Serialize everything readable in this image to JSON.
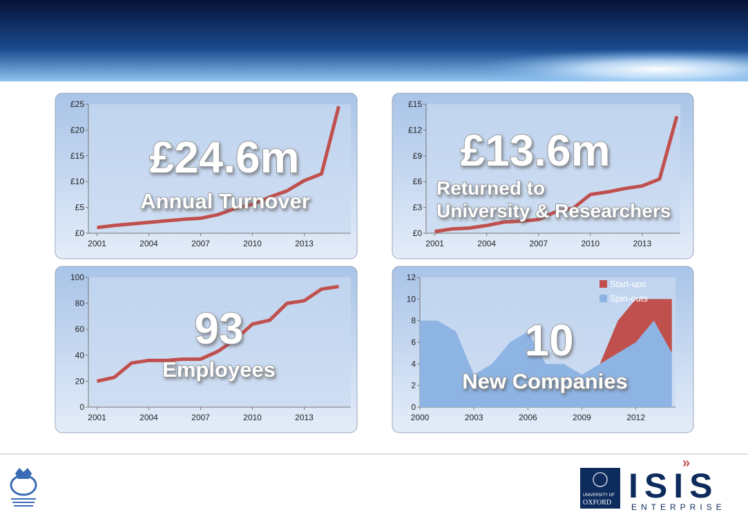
{
  "chart_data": [
    {
      "type": "line",
      "annotation": [
        "£24.6m",
        "Annual Turnover"
      ],
      "x": [
        2001,
        2002,
        2003,
        2004,
        2005,
        2006,
        2007,
        2008,
        2009,
        2010,
        2011,
        2012,
        2013,
        2014,
        2015
      ],
      "values": [
        1.1,
        1.5,
        1.8,
        2.1,
        2.4,
        2.7,
        2.9,
        3.6,
        4.8,
        5.6,
        7.0,
        8.2,
        10.2,
        11.5,
        24.6
      ],
      "color": "#c0504d",
      "xlim": [
        2000.5,
        2015.7
      ],
      "xticks": [
        2001,
        2004,
        2007,
        2010,
        2013
      ],
      "ylim": [
        0,
        25
      ],
      "yticks": [
        {
          "value": 0,
          "label": "£0"
        },
        {
          "value": 5,
          "label": "£5"
        },
        {
          "value": 10,
          "label": "£10"
        },
        {
          "value": 15,
          "label": "£15"
        },
        {
          "value": 20,
          "label": "£20"
        },
        {
          "value": 25,
          "label": "£25"
        }
      ]
    },
    {
      "type": "line",
      "annotation": [
        "£13.6m",
        "Returned to",
        "University & Researchers"
      ],
      "x": [
        2001,
        2002,
        2003,
        2004,
        2005,
        2006,
        2007,
        2008,
        2009,
        2010,
        2011,
        2012,
        2013,
        2014,
        2015
      ],
      "values": [
        0.2,
        0.5,
        0.6,
        0.9,
        1.3,
        1.4,
        1.6,
        2.5,
        2.9,
        4.5,
        4.8,
        5.2,
        5.5,
        6.3,
        13.6
      ],
      "color": "#c0504d",
      "xlim": [
        2000.5,
        2015.2
      ],
      "xticks": [
        2001,
        2004,
        2007,
        2010,
        2013
      ],
      "ylim": [
        0,
        15
      ],
      "yticks": [
        {
          "value": 0,
          "label": "£0"
        },
        {
          "value": 3,
          "label": "£3"
        },
        {
          "value": 6,
          "label": "£6"
        },
        {
          "value": 9,
          "label": "£9"
        },
        {
          "value": 12,
          "label": "£12"
        },
        {
          "value": 15,
          "label": "£15"
        }
      ]
    },
    {
      "type": "line",
      "annotation": [
        "93",
        "Employees"
      ],
      "x": [
        2001,
        2002,
        2003,
        2004,
        2005,
        2006,
        2007,
        2008,
        2009,
        2010,
        2011,
        2012,
        2013,
        2014,
        2015
      ],
      "values": [
        20,
        23,
        34,
        36,
        36,
        37,
        37,
        43,
        52,
        64,
        67,
        80,
        82,
        91,
        93
      ],
      "color": "#c0504d",
      "xlim": [
        2000.5,
        2015.7
      ],
      "xticks": [
        2001,
        2004,
        2007,
        2010,
        2013
      ],
      "ylim": [
        0,
        100
      ],
      "yticks": [
        0,
        20,
        40,
        60,
        80,
        100
      ]
    },
    {
      "type": "stacked-area",
      "annotation": [
        "10",
        "New Companies"
      ],
      "x": [
        2000,
        2001,
        2002,
        2003,
        2004,
        2005,
        2006,
        2007,
        2008,
        2009,
        2010,
        2011,
        2012,
        2013,
        2014
      ],
      "series": [
        {
          "name": "Spin-outs",
          "color": "#8eb4e3",
          "values": [
            8,
            8,
            7,
            3,
            4,
            6,
            7,
            4,
            4,
            3,
            4,
            5,
            6,
            8,
            5
          ]
        },
        {
          "name": "Start-ups",
          "color": "#c0504d",
          "values": [
            0,
            0,
            0,
            0,
            0,
            0,
            0,
            0,
            0,
            0,
            0,
            3,
            4,
            2,
            5
          ]
        }
      ],
      "legend": "upper right",
      "xlim": [
        2000,
        2014.2
      ],
      "xticks": [
        2000,
        2003,
        2006,
        2009,
        2012
      ],
      "ylim": [
        0,
        12
      ],
      "yticks": [
        0,
        2,
        4,
        6,
        8,
        10,
        12
      ]
    }
  ],
  "footer": {
    "oxford": [
      "UNIVERSITY OF",
      "OXFORD"
    ],
    "brand": "ISIS",
    "brand_sub": "ENTERPRISE"
  }
}
